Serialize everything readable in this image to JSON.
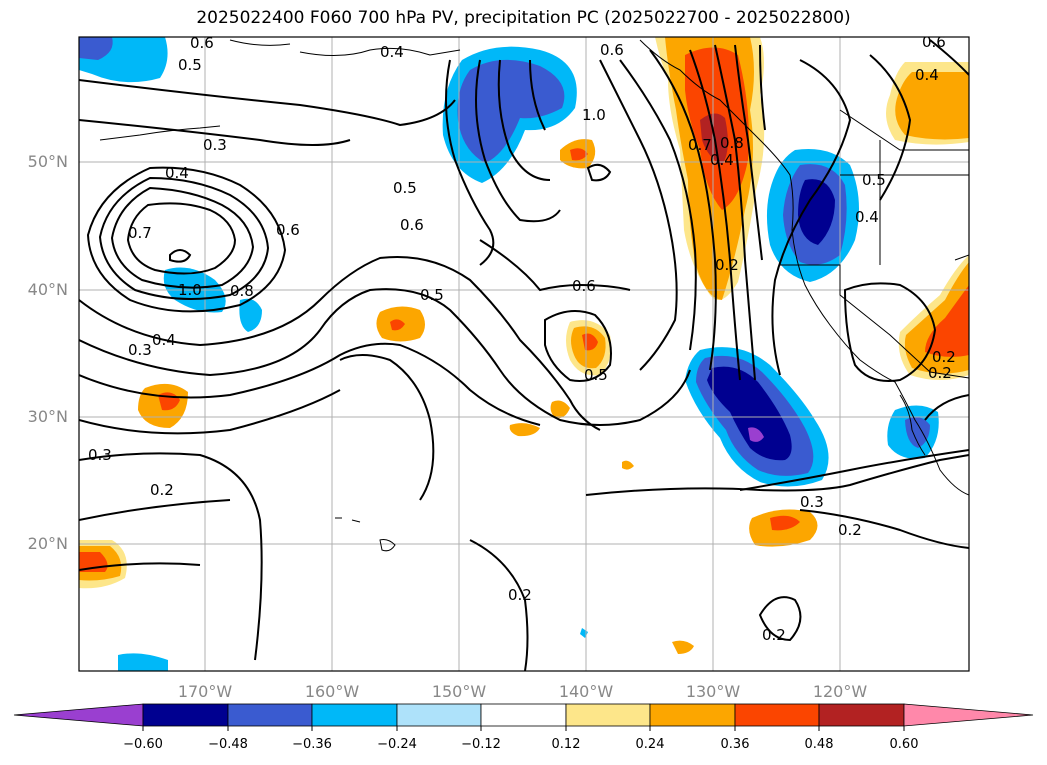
{
  "title": "2025022400 F060 700 hPa PV, precipitation PC (2025022700 - 2025022800)",
  "lat_labels": [
    "50°N",
    "40°N",
    "30°N",
    "20°N"
  ],
  "lon_labels": [
    "170°W",
    "160°W",
    "150°W",
    "140°W",
    "130°W",
    "120°W"
  ],
  "colorbar": {
    "tick_labels": [
      "−0.60",
      "−0.48",
      "−0.36",
      "−0.24",
      "−0.12",
      "0.12",
      "0.24",
      "0.36",
      "0.48",
      "0.60"
    ],
    "colors": [
      "#9a3fd0",
      "#000090",
      "#3a5bd0",
      "#00b8f8",
      "#aee2fa",
      "#ffffff",
      "#fde68a",
      "#fca600",
      "#fb4500",
      "#b22222",
      "#ff88aa"
    ]
  },
  "contour_labels": [
    "0.6",
    "0.5",
    "0.4",
    "0.3",
    "0.4",
    "0.5",
    "0.6",
    "0.6",
    "0.7",
    "1.0",
    "0.8",
    "0.4",
    "0.3",
    "0.5",
    "0.6",
    "1.0",
    "0.6",
    "0.5",
    "0.8",
    "0.7",
    "0.4",
    "0.2",
    "0.5",
    "0.4",
    "0.3",
    "0.2",
    "0.2",
    "0.3",
    "0.2",
    "0.2",
    "0.2",
    "0.4",
    "0.6",
    "0.2"
  ]
}
